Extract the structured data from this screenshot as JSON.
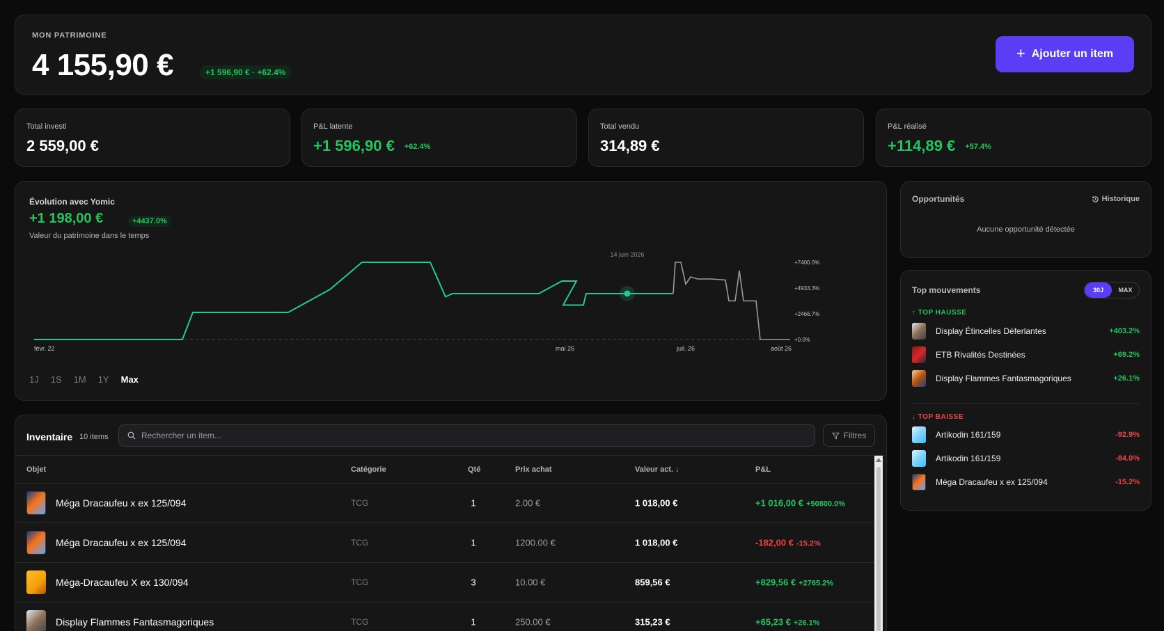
{
  "header": {
    "label": "MON PATRIMOINE",
    "value": "4 155,90 €",
    "change": "+1 596,90 € · +62.4%",
    "add_button": "Ajouter un item"
  },
  "stats": [
    {
      "label": "Total investi",
      "value": "2 559,00 €",
      "pct": ""
    },
    {
      "label": "P&L latente",
      "value": "+1 596,90 €",
      "pct": "+62.4%"
    },
    {
      "label": "Total vendu",
      "value": "314,89 €",
      "pct": ""
    },
    {
      "label": "P&L réalisé",
      "value": "+114,89 €",
      "pct": "+57.4%"
    }
  ],
  "chart": {
    "title": "Évolution avec Yomic",
    "gain": "+1 198,00 €",
    "gain_pct": "+4437.0%",
    "subtitle": "Valeur du patrimoine dans le temps",
    "ranges": [
      "1J",
      "1S",
      "1M",
      "1Y",
      "Max"
    ],
    "active_range": "Max"
  },
  "chart_data": {
    "type": "line",
    "title": "Évolution avec Yomic",
    "y_unit": "%",
    "y_ticks": [
      "+0.0%",
      "+2466.7%",
      "+4933.3%",
      "+7400.0%"
    ],
    "ylim": [
      0,
      7400
    ],
    "x_ticks": [
      "févr. 22",
      "mai 26",
      "juil. 26",
      "août 26"
    ],
    "hover_label": "14 juin 2026",
    "baseline": 0,
    "grid": false,
    "series": [
      {
        "color": "#22c997",
        "values": [
          0,
          0,
          2600,
          2600,
          4800,
          7400,
          7400,
          4100,
          4400,
          4400,
          5600,
          5600,
          3300,
          3300,
          4400,
          4400
        ]
      },
      {
        "color": "#9a9a9f",
        "values": [
          4400,
          4400,
          7400,
          5300,
          6000,
          5800,
          5700,
          3700,
          6600,
          3700,
          0,
          0
        ]
      }
    ]
  },
  "opportunities": {
    "title": "Opportunités",
    "history": "Historique",
    "empty": "Aucune opportunité détectée"
  },
  "top_moves": {
    "title": "Top mouvements",
    "toggle": [
      "30J",
      "MAX"
    ],
    "up_header": "↑ TOP HAUSSE",
    "down_header": "↓ TOP BAISSE",
    "up": [
      {
        "name": "Display Étincelles Déferlantes",
        "pct": "+403.2%"
      },
      {
        "name": "ETB Rivalités Destinées",
        "pct": "+69.2%"
      },
      {
        "name": "Display Flammes Fantasmagoriques",
        "pct": "+26.1%"
      }
    ],
    "down": [
      {
        "name": "Artikodin 161/159",
        "pct": "-92.9%"
      },
      {
        "name": "Artikodin 161/159",
        "pct": "-84.0%"
      },
      {
        "name": "Méga Dracaufeu x ex 125/094",
        "pct": "-15.2%"
      }
    ]
  },
  "inventory": {
    "title": "Inventaire",
    "count": "10 items",
    "search_placeholder": "Rechercher un item...",
    "filters": "Filtres",
    "columns": [
      "Objet",
      "Catégorie",
      "Qté",
      "Prix achat",
      "Valeur act. ↓",
      "P&L"
    ],
    "rows": [
      {
        "name": "Méga Dracaufeu x ex 125/094",
        "cat": "TCG",
        "qte": "1",
        "buy": "2.00 €",
        "val": "1 018,00 €",
        "pl": "+1 016,00 €",
        "pl_pct": "+50800.0%"
      },
      {
        "name": "Méga Dracaufeu x ex 125/094",
        "cat": "TCG",
        "qte": "1",
        "buy": "1200.00 €",
        "val": "1 018,00 €",
        "pl": "-182,00 €",
        "pl_pct": "-15.2%"
      },
      {
        "name": "Méga-Dracaufeu X ex 130/094",
        "cat": "TCG",
        "qte": "3",
        "buy": "10.00 €",
        "val": "859,56 €",
        "pl": "+829,56 €",
        "pl_pct": "+2765.2%"
      },
      {
        "name": "Display Flammes Fantasmagoriques",
        "cat": "TCG",
        "qte": "1",
        "buy": "250.00 €",
        "val": "315,23 €",
        "pl": "+65,23 €",
        "pl_pct": "+26.1%"
      }
    ]
  }
}
